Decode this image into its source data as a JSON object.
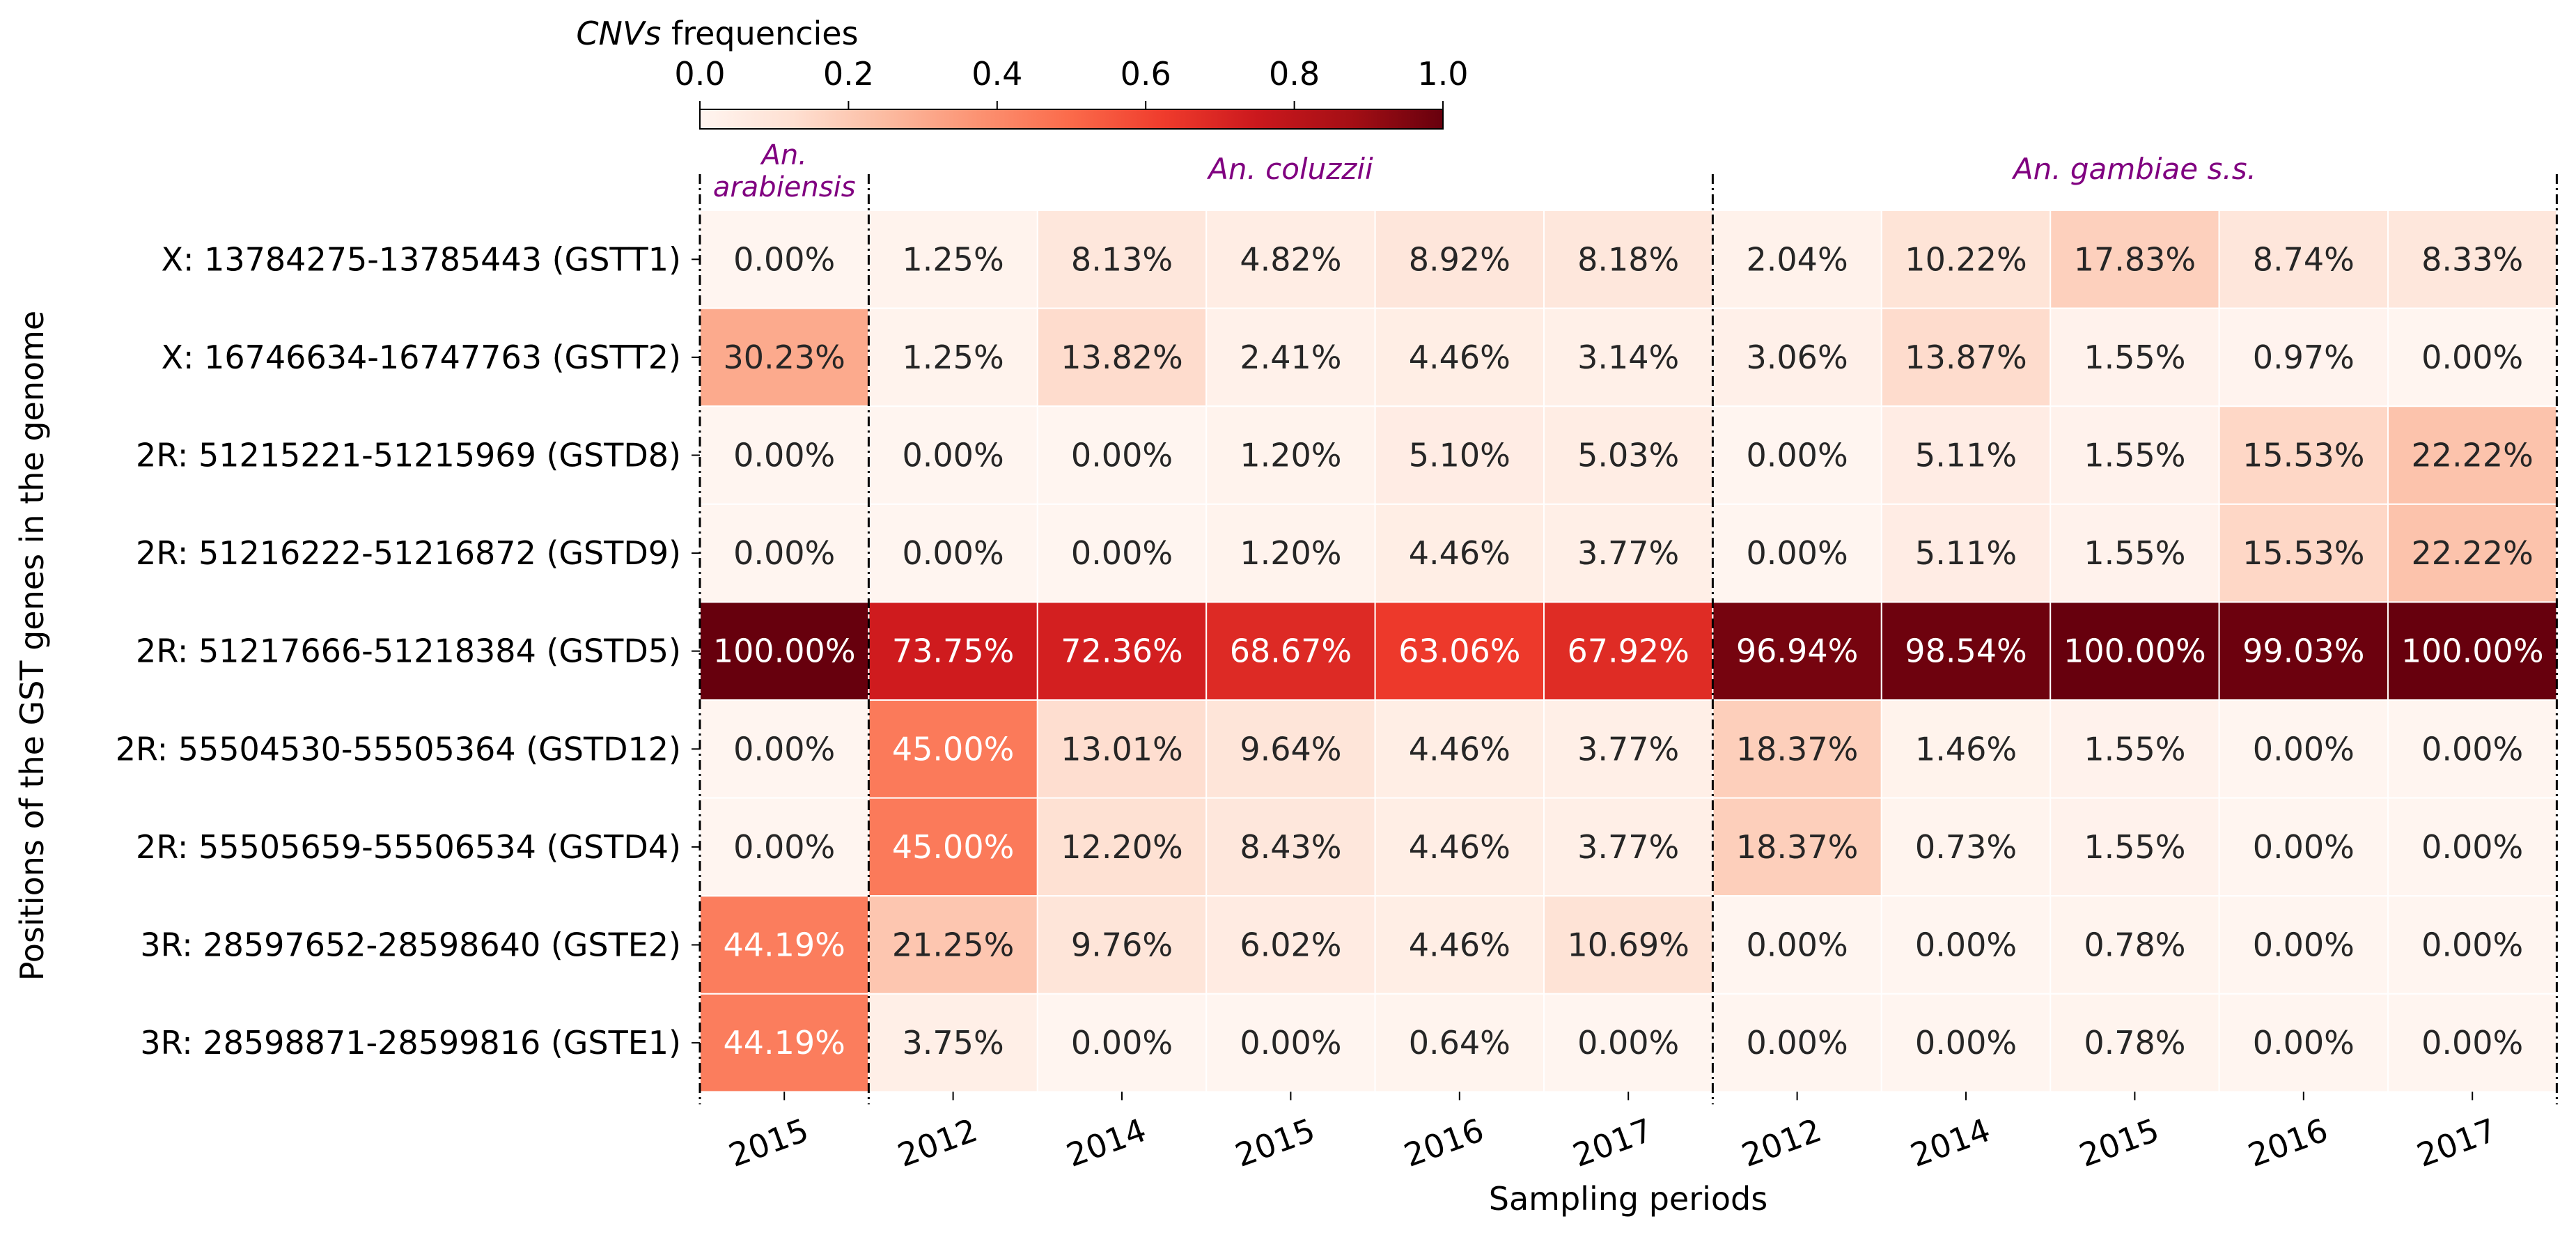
{
  "chart_data": {
    "type": "heatmap",
    "colorbar": {
      "label_italic": "CNVs",
      "label_rest": " frequencies",
      "min": 0,
      "max": 1,
      "ticks": [
        "0.0",
        "0.2",
        "0.4",
        "0.6",
        "0.8",
        "1.0"
      ],
      "colormap": "Reds",
      "position": "top"
    },
    "ylabel": "Positions of the GST genes in the genome",
    "xlabel": "Sampling periods",
    "groups": [
      {
        "name_lines": [
          "An.",
          "arabiensis"
        ],
        "columns": 1
      },
      {
        "name_lines": [
          "An. coluzzii"
        ],
        "columns": 5
      },
      {
        "name_lines": [
          "An. gambiae s.s."
        ],
        "columns": 5
      }
    ],
    "group_color": "#800080",
    "columns": [
      "2015",
      "2012",
      "2014",
      "2015",
      "2016",
      "2017",
      "2012",
      "2014",
      "2015",
      "2016",
      "2017"
    ],
    "rows": [
      "X: 13784275-13785443 (GSTT1)",
      "X: 16746634-16747763 (GSTT2)",
      "2R: 51215221-51215969 (GSTD8)",
      "2R: 51216222-51216872 (GSTD9)",
      "2R: 51217666-51218384 (GSTD5)",
      "2R: 55504530-55505364 (GSTD12)",
      "2R: 55505659-55506534 (GSTD4)",
      "3R: 28597652-28598640 (GSTE2)",
      "3R: 28598871-28599816 (GSTE1)"
    ],
    "values": [
      [
        0.0,
        1.25,
        8.13,
        4.82,
        8.92,
        8.18,
        2.04,
        10.22,
        17.83,
        8.74,
        8.33
      ],
      [
        30.23,
        1.25,
        13.82,
        2.41,
        4.46,
        3.14,
        3.06,
        13.87,
        1.55,
        0.97,
        0.0
      ],
      [
        0.0,
        0.0,
        0.0,
        1.2,
        5.1,
        5.03,
        0.0,
        5.11,
        1.55,
        15.53,
        22.22
      ],
      [
        0.0,
        0.0,
        0.0,
        1.2,
        4.46,
        3.77,
        0.0,
        5.11,
        1.55,
        15.53,
        22.22
      ],
      [
        100.0,
        73.75,
        72.36,
        68.67,
        63.06,
        67.92,
        96.94,
        98.54,
        100.0,
        99.03,
        100.0
      ],
      [
        0.0,
        45.0,
        13.01,
        9.64,
        4.46,
        3.77,
        18.37,
        1.46,
        1.55,
        0.0,
        0.0
      ],
      [
        0.0,
        45.0,
        12.2,
        8.43,
        4.46,
        3.77,
        18.37,
        0.73,
        1.55,
        0.0,
        0.0
      ],
      [
        44.19,
        21.25,
        9.76,
        6.02,
        4.46,
        10.69,
        0.0,
        0.0,
        0.78,
        0.0,
        0.0
      ],
      [
        44.19,
        3.75,
        0.0,
        0.0,
        0.64,
        0.0,
        0.0,
        0.0,
        0.78,
        0.0,
        0.0
      ]
    ],
    "value_format": "percent_2dp"
  }
}
